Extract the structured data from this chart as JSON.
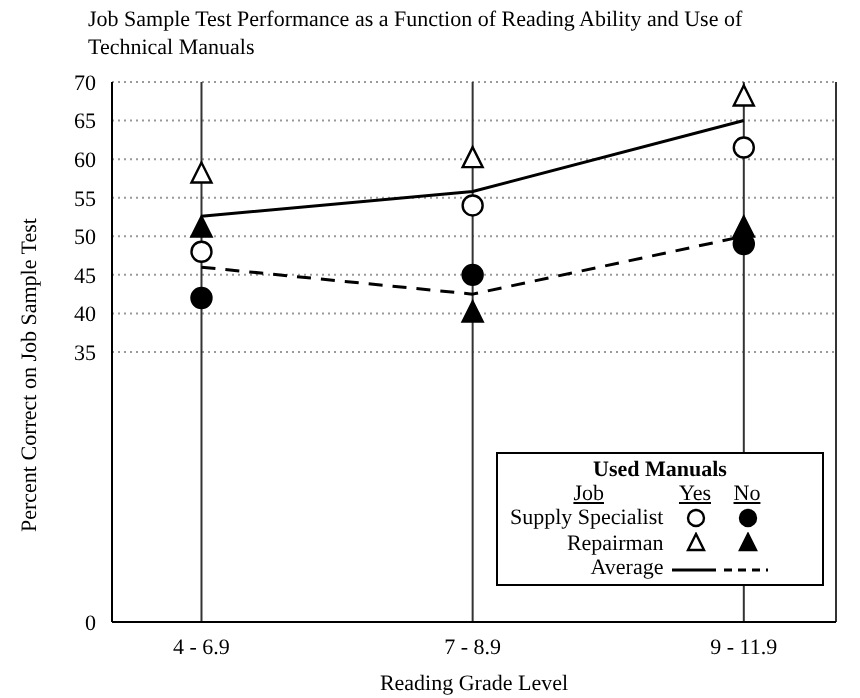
{
  "chart_data": {
    "type": "scatter",
    "title": "Job Sample Test Performance as a Function of Reading Ability and Use of Technical Manuals",
    "xlabel": "Reading Grade Level",
    "ylabel": "Percent Correct on Job Sample Test",
    "legend_title": "Used Manuals",
    "annotations": [
      "Job",
      "Yes",
      "No"
    ],
    "categories": [
      "4 - 6.9",
      "7 - 8.9",
      "9 - 11.9"
    ],
    "ylim": [
      0,
      70
    ],
    "yticks": [
      0,
      35,
      40,
      45,
      50,
      55,
      60,
      65,
      70
    ],
    "grid": true,
    "legend": "bottom right",
    "series": [
      {
        "name": "Supply Specialist",
        "color": "#000000",
        "marker": "circle",
        "values": [
          48,
          54,
          61.5
        ]
      },
      {
        "color": "#000000",
        "marker": "circle",
        "values": [
          42,
          45,
          49
        ]
      },
      {
        "name": "Repairman",
        "color": "#000000",
        "marker": "triangle",
        "values": [
          58,
          60,
          68
        ]
      },
      {
        "color": "#000000",
        "marker": "triangle",
        "values": [
          51,
          40,
          51
        ]
      },
      {
        "name": "Average",
        "type": "line",
        "color": "#000000",
        "marker": "none",
        "line_style": "solid",
        "values": [
          52.6,
          55.8,
          65
        ]
      },
      {
        "type": "line",
        "color": "#000000",
        "marker": "none",
        "line_style": "dashed",
        "values": [
          46,
          42.5,
          50
        ]
      }
    ]
  }
}
